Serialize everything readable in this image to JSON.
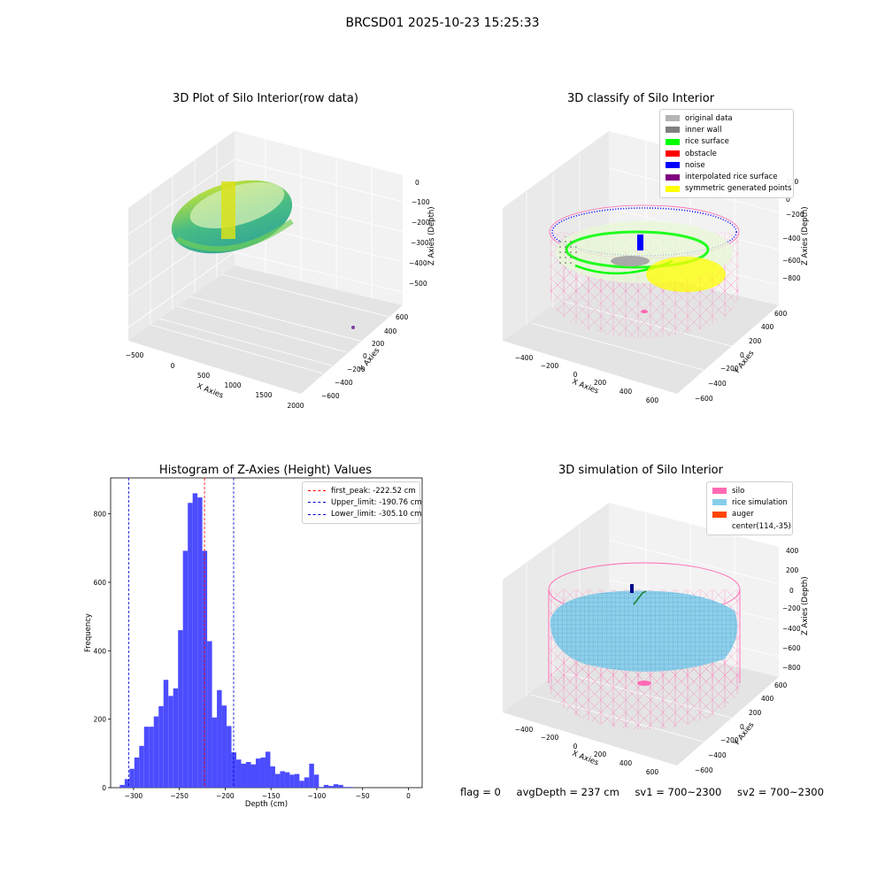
{
  "suptitle": "BRCSD01 2025-10-23 15:25:33",
  "colors": {
    "hist_bar": "#4c4cff",
    "first_peak_line": "#ff0000",
    "limit_lines": "#0000cc",
    "silo_pink": "#ff69b4",
    "rice_blue": "#87ceeb",
    "noise_blue": "#0000ff",
    "rice_green": "#00ff00"
  },
  "plot_raw": {
    "title": "3D Plot of Silo Interior(row data)",
    "xlabel": "X Axies",
    "ylabel": "Y Axies",
    "zlabel": "Z Axies (Depth)",
    "x_ticks": [
      "−500",
      "0",
      "500",
      "1000",
      "1500",
      "2000"
    ],
    "y_ticks": [
      "600",
      "400",
      "200",
      "0",
      "−200",
      "−400",
      "−600"
    ],
    "z_ticks": [
      "0",
      "−100",
      "−200",
      "−300",
      "−400",
      "−500"
    ]
  },
  "plot_classify": {
    "title": "3D classify of Silo Interior",
    "xlabel": "X Axies",
    "ylabel": "Y Axies",
    "zlabel": "Z Axies (Depth)",
    "x_ticks": [
      "−400",
      "−200",
      "0",
      "200",
      "400",
      "600"
    ],
    "y_ticks": [
      "600",
      "400",
      "200",
      "0",
      "−200",
      "−400",
      "−600"
    ],
    "z_ticks": [
      "200",
      "0",
      "−200",
      "−400",
      "−600",
      "−800"
    ],
    "legend": [
      {
        "label": "original data",
        "color": "#b4b4b4"
      },
      {
        "label": "inner wall",
        "color": "#808080"
      },
      {
        "label": "rice surface",
        "color": "#00ff00"
      },
      {
        "label": "obstacle",
        "color": "#ff0000"
      },
      {
        "label": "noise",
        "color": "#0000ff"
      },
      {
        "label": "interpolated rice surface",
        "color": "#800080"
      },
      {
        "label": "symmetric generated points",
        "color": "#ffff00"
      }
    ]
  },
  "plot_simulation": {
    "title": "3D simulation of Silo Interior",
    "xlabel": "X Axies",
    "ylabel": "Y Axies",
    "zlabel": "Z Axies (Depth)",
    "x_ticks": [
      "−400",
      "−200",
      "0",
      "200",
      "400",
      "600"
    ],
    "y_ticks": [
      "600",
      "400",
      "200",
      "0",
      "−200",
      "−400",
      "−600"
    ],
    "z_ticks": [
      "400",
      "200",
      "0",
      "−200",
      "−400",
      "−600",
      "−800"
    ],
    "legend": [
      {
        "label": "silo",
        "color": "#ff69b4"
      },
      {
        "label": "rice simulation",
        "color": "#87ceeb"
      },
      {
        "label": "auger",
        "color": "#ff4500"
      },
      {
        "label": "center(114,-35)",
        "color": ""
      }
    ]
  },
  "bottom_info": {
    "flag": "flag = 0",
    "avg_depth": "avgDepth = 237 cm",
    "sv1": "sv1 = 700~2300",
    "sv2": "sv2 = 700~2300"
  },
  "chart_data": {
    "type": "bar",
    "title": "Histogram of Z-Axies (Height) Values",
    "xlabel": "Depth (cm)",
    "ylabel": "Frequency",
    "xlim": [
      -325,
      15
    ],
    "ylim": [
      0,
      905
    ],
    "x_ticks": [
      -300,
      -250,
      -200,
      -150,
      -100,
      -50,
      0
    ],
    "y_ticks": [
      0,
      200,
      400,
      600,
      800
    ],
    "bin_start": -315,
    "bin_width": 5.3,
    "values": [
      8,
      25,
      55,
      88,
      122,
      178,
      178,
      208,
      238,
      315,
      268,
      290,
      460,
      692,
      832,
      860,
      848,
      692,
      428,
      205,
      285,
      240,
      180,
      103,
      82,
      70,
      75,
      68,
      85,
      88,
      105,
      62,
      40,
      48,
      45,
      38,
      40,
      20,
      30,
      70,
      38,
      2,
      8,
      5,
      10,
      8,
      2,
      2
    ],
    "vlines": [
      {
        "label": "first_peak: -222.52 cm",
        "x": -222.52,
        "color": "#ff0000"
      },
      {
        "label": "Upper_limit: -190.76 cm",
        "x": -190.76,
        "color": "#0000cc"
      },
      {
        "label": "Lower_limit: -305.10 cm",
        "x": -305.1,
        "color": "#0000cc"
      }
    ]
  }
}
